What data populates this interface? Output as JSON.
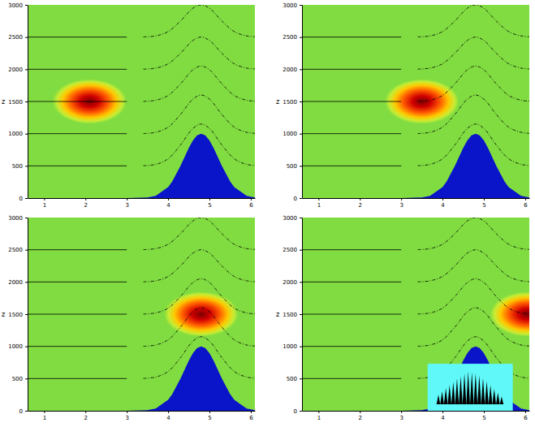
{
  "chart_data": {
    "type": "multi_panel",
    "ylabel": "z",
    "xlim": [
      0.6,
      6.1
    ],
    "ylim": [
      0,
      3000
    ],
    "xticks": [
      1,
      2,
      3,
      4,
      5,
      6
    ],
    "yticks": [
      0,
      500,
      1000,
      1500,
      2000,
      2500,
      3000
    ],
    "terrain": {
      "color": "#0a14c8",
      "x": [
        0.6,
        3.0,
        3.5,
        3.7,
        4.0,
        4.1,
        4.3,
        4.5,
        4.6,
        4.7,
        4.8,
        4.9,
        5.0,
        5.1,
        5.3,
        5.5,
        5.6,
        5.9,
        6.1
      ],
      "z": [
        0,
        0,
        9,
        35,
        169,
        257,
        500,
        779,
        895,
        973,
        1000,
        973,
        895,
        779,
        500,
        257,
        169,
        35,
        9
      ]
    },
    "streamlines": [
      {
        "line_style": "solid",
        "x": [
          0.6,
          3.0
        ],
        "z": [
          500,
          500
        ]
      },
      {
        "line_style": "solid",
        "x": [
          0.6,
          3.0
        ],
        "z": [
          1000,
          1000
        ]
      },
      {
        "line_style": "solid",
        "x": [
          0.6,
          3.0
        ],
        "z": [
          1500,
          1500
        ]
      },
      {
        "line_style": "solid",
        "x": [
          0.6,
          3.0
        ],
        "z": [
          2000,
          2000
        ]
      },
      {
        "line_style": "solid",
        "x": [
          0.6,
          3.0
        ],
        "z": [
          2500,
          2500
        ]
      },
      {
        "line_style": "dashdot",
        "x": [
          3.4,
          3.7,
          4.0,
          4.3,
          4.6,
          4.8,
          5.0,
          5.3,
          5.6,
          5.9,
          6.1
        ],
        "z": [
          503,
          523,
          610,
          825,
          1082,
          1150,
          1082,
          825,
          610,
          523,
          506
        ]
      },
      {
        "line_style": "dashdot",
        "x": [
          3.4,
          3.7,
          4.0,
          4.3,
          4.6,
          4.8,
          5.0,
          5.3,
          5.6,
          5.9,
          6.1
        ],
        "z": [
          1002,
          1021,
          1101,
          1300,
          1537,
          1600,
          1537,
          1300,
          1101,
          1021,
          1005
        ]
      },
      {
        "line_style": "dashdot",
        "x": [
          3.4,
          3.7,
          4.0,
          4.3,
          4.6,
          4.8,
          5.0,
          5.3,
          5.6,
          5.9,
          6.1
        ],
        "z": [
          1502,
          1519,
          1593,
          1775,
          1992,
          2050,
          1992,
          1775,
          1593,
          1519,
          1505
        ]
      },
      {
        "line_style": "dashdot",
        "x": [
          3.4,
          3.7,
          4.0,
          4.3,
          4.6,
          4.8,
          5.0,
          5.3,
          5.6,
          5.9,
          6.1
        ],
        "z": [
          2002,
          2018,
          2085,
          2250,
          2448,
          2500,
          2448,
          2250,
          2085,
          2018,
          2005
        ]
      },
      {
        "line_style": "dashdot",
        "x": [
          3.4,
          3.7,
          4.0,
          4.3,
          4.6,
          4.8,
          5.0,
          5.3,
          5.6,
          5.9,
          6.1
        ],
        "z": [
          2502,
          2518,
          2585,
          2750,
          2948,
          3000,
          2948,
          2750,
          2585,
          2518,
          2505
        ]
      }
    ],
    "panels": [
      {
        "tracer": {
          "x": 2.1,
          "z": 1500,
          "x_radius": 0.9,
          "z_radius": 350
        }
      },
      {
        "tracer": {
          "x": 3.5,
          "z": 1500,
          "x_radius": 0.9,
          "z_radius": 350
        }
      },
      {
        "tracer": {
          "x": 4.8,
          "z": 1500,
          "x_radius": 0.9,
          "z_radius": 350
        }
      },
      {
        "tracer": {
          "x": 6.05,
          "z": 1500,
          "x_radius": 0.9,
          "z_radius": 350
        },
        "inset": {
          "color": "#60f8f8",
          "xlim": [
            3.64,
            5.7
          ],
          "zlim": [
            0,
            730
          ],
          "base": 100,
          "x": [
            3.9,
            3.99,
            4.08,
            4.17,
            4.26,
            4.35,
            4.44,
            4.53,
            4.62,
            4.71,
            4.8,
            4.89,
            4.98,
            5.07,
            5.16,
            5.25,
            5.34,
            5.43
          ],
          "peaks": [
            250,
            300,
            350,
            400,
            450,
            500,
            540,
            580,
            610,
            600,
            580,
            550,
            510,
            460,
            400,
            340,
            280,
            220
          ]
        }
      }
    ]
  }
}
